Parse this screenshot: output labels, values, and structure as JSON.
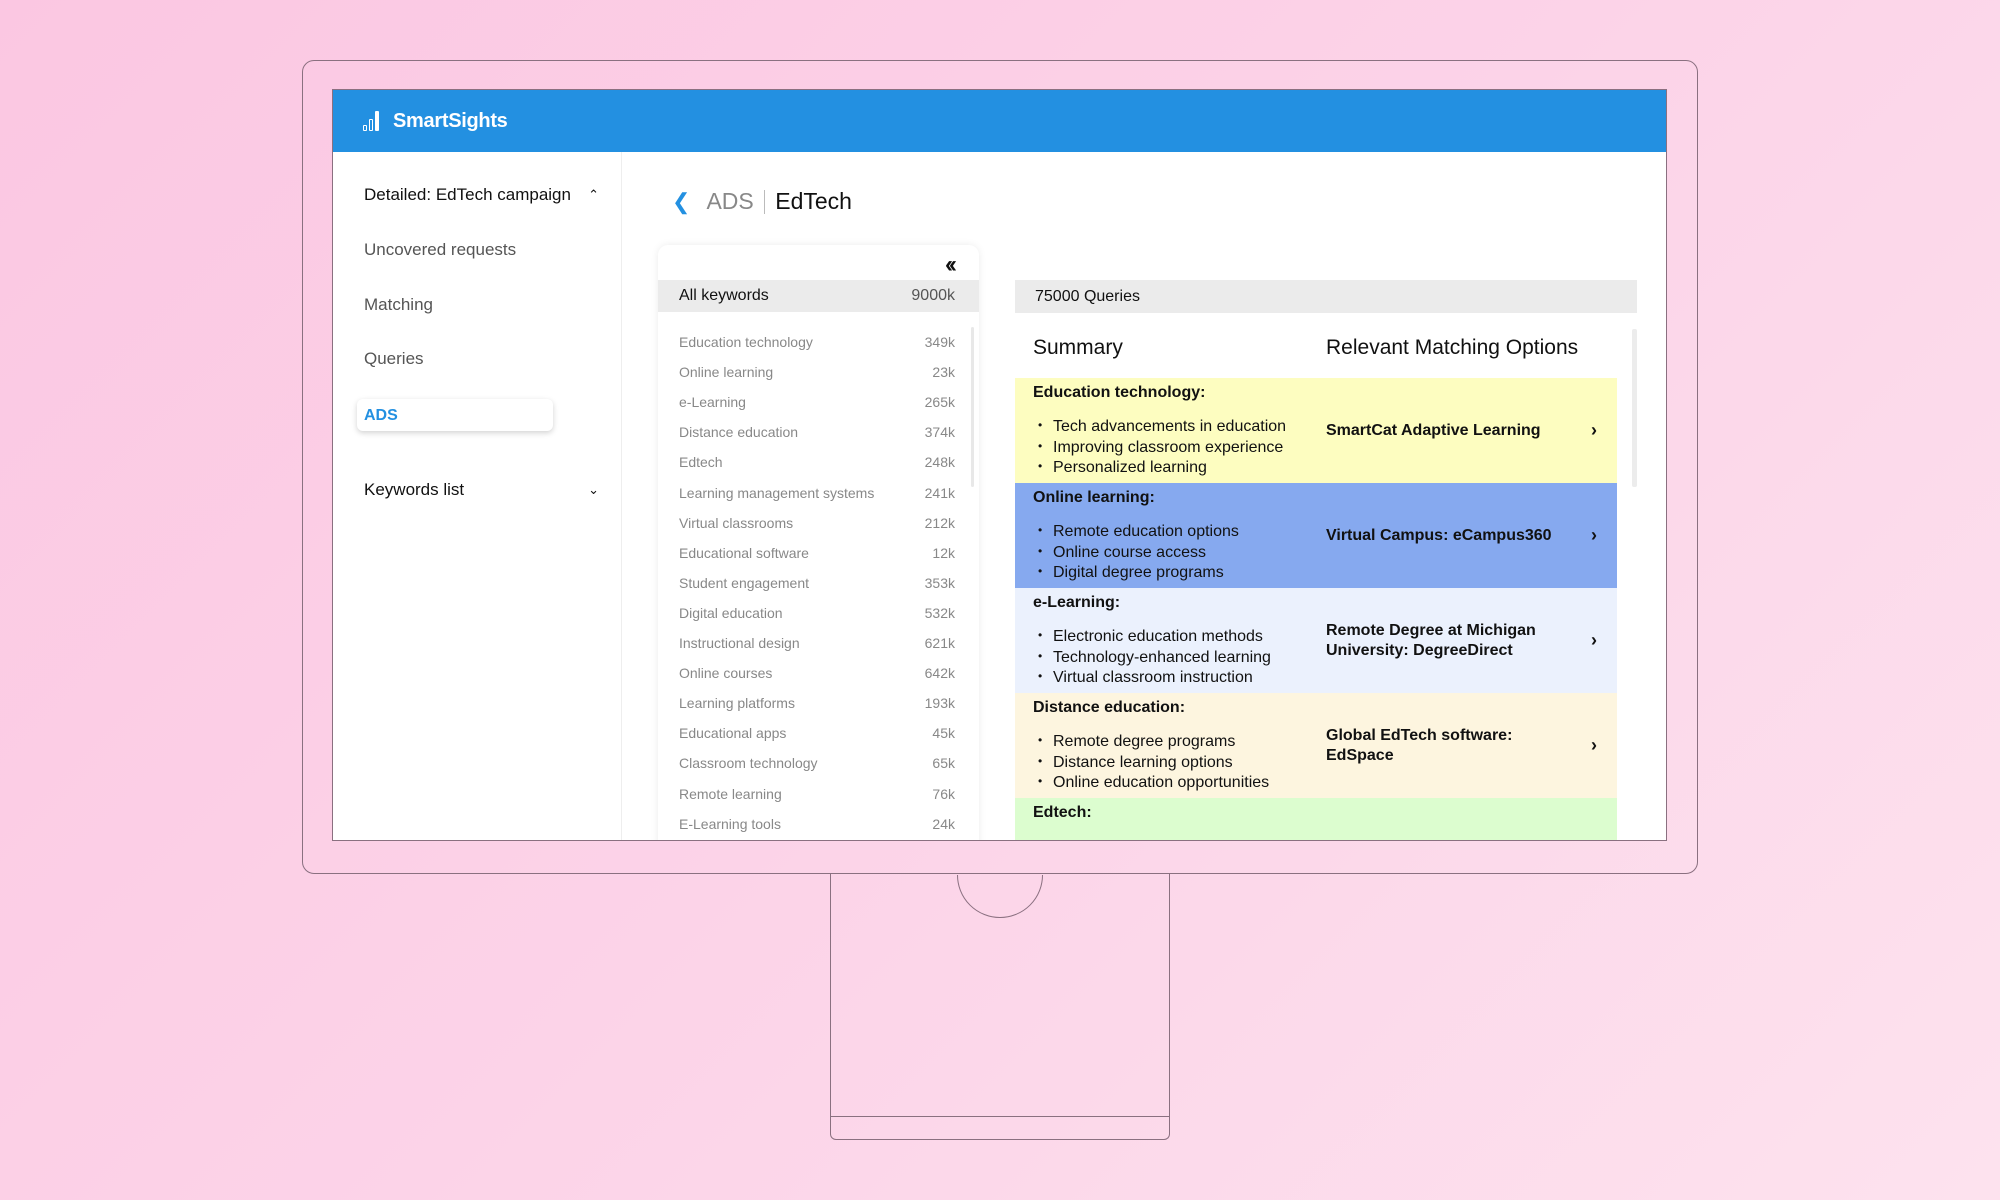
{
  "app": {
    "brand": "SmartSights",
    "header_color": "#2390e1"
  },
  "sidebar": {
    "section_title": "Detailed: EdTech campaign",
    "items": [
      {
        "label": "Uncovered requests"
      },
      {
        "label": "Matching"
      },
      {
        "label": "Queries"
      },
      {
        "label": "ADS",
        "active": true
      }
    ],
    "keywords_list": "Keywords list"
  },
  "breadcrumb": {
    "parent": "ADS",
    "current": "EdTech"
  },
  "keywords": {
    "collapse_icon": "double-chevron-left",
    "all_label": "All keywords",
    "all_count": "9000k",
    "rows": [
      {
        "name": "Education technology",
        "count": "349k"
      },
      {
        "name": "Online learning",
        "count": "23k"
      },
      {
        "name": "e-Learning",
        "count": "265k"
      },
      {
        "name": "Distance education",
        "count": "374k"
      },
      {
        "name": "Edtech",
        "count": "248k"
      },
      {
        "name": "Learning management systems",
        "count": "241k"
      },
      {
        "name": "Virtual classrooms",
        "count": "212k"
      },
      {
        "name": "Educational software",
        "count": "12k"
      },
      {
        "name": "Student engagement",
        "count": "353k"
      },
      {
        "name": "Digital education",
        "count": "532k"
      },
      {
        "name": "Instructional design",
        "count": "621k"
      },
      {
        "name": "Online courses",
        "count": "642k"
      },
      {
        "name": "Learning platforms",
        "count": "193k"
      },
      {
        "name": "Educational apps",
        "count": "45k"
      },
      {
        "name": "Classroom technology",
        "count": "65k"
      },
      {
        "name": "Remote learning",
        "count": "76k"
      },
      {
        "name": "E-Learning tools",
        "count": "24k"
      }
    ]
  },
  "results": {
    "queries": "75000 Queries",
    "summary_header": "Summary",
    "options_header": "Relevant Matching Options",
    "sections": [
      {
        "title": "Education technology:",
        "bullets": [
          "Tech advancements in education",
          "Improving classroom experience",
          "Personalized learning"
        ],
        "option": "SmartCat Adaptive Learning",
        "color": "#fdfdc0"
      },
      {
        "title": "Online learning:",
        "bullets": [
          "Remote education options",
          "Online course access",
          "Digital degree programs"
        ],
        "option": "Virtual Campus: eCampus360",
        "color": "#86a9ef"
      },
      {
        "title": "e-Learning:",
        "bullets": [
          "Electronic education methods",
          "Technology-enhanced learning",
          "Virtual classroom instruction"
        ],
        "option": "Remote Degree at Michigan University: DegreeDirect",
        "color": "#ebf1fd"
      },
      {
        "title": "Distance education:",
        "bullets": [
          "Remote degree programs",
          "Distance learning options",
          "Online education opportunities"
        ],
        "option": "Global EdTech software: EdSpace",
        "color": "#fdf5df"
      },
      {
        "title": "Edtech:",
        "bullets": [],
        "option": "",
        "color": "#dcfdcf"
      }
    ]
  }
}
